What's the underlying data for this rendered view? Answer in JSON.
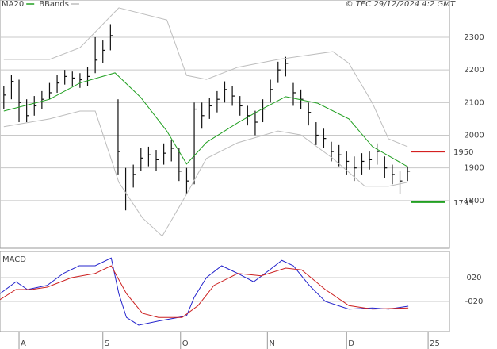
{
  "chart_data": [
    {
      "type": "ohlc",
      "annotation": "© TEC 29/12/2024 4:2 GMT",
      "xlim": [
        -0.5,
        58.5
      ],
      "ylim": [
        1654,
        2414
      ],
      "yticks": [
        1800,
        1900,
        2000,
        2100,
        2200,
        2300
      ],
      "grid": true,
      "bars": {
        "color": "#111111",
        "high": [
          2150,
          2185,
          2170,
          2110,
          2120,
          2135,
          2160,
          2185,
          2200,
          2195,
          2190,
          2210,
          2300,
          2290,
          2340,
          2110,
          1900,
          1910,
          1960,
          1965,
          1955,
          1975,
          1985,
          1960,
          1900,
          2100,
          2100,
          2115,
          2135,
          2165,
          2150,
          2120,
          2090,
          2075,
          2110,
          2170,
          2225,
          2240,
          2160,
          2140,
          2100,
          2040,
          2020,
          1980,
          1970,
          1950,
          1935,
          1945,
          1950,
          1975,
          1935,
          1910,
          1890,
          1905
        ],
        "low": [
          2080,
          2110,
          2040,
          2040,
          2060,
          2080,
          2110,
          2130,
          2155,
          2150,
          2145,
          2150,
          2190,
          2220,
          2260,
          1880,
          1770,
          1840,
          1890,
          1905,
          1890,
          1910,
          1920,
          1860,
          1820,
          1850,
          2020,
          2050,
          2070,
          2100,
          2090,
          2060,
          2030,
          2000,
          2040,
          2100,
          2160,
          2180,
          2090,
          2080,
          2030,
          1970,
          1960,
          1920,
          1905,
          1880,
          1860,
          1880,
          1895,
          1910,
          1870,
          1850,
          1820,
          1860
        ],
        "close": [
          2123,
          2165,
          2100,
          2060,
          2090,
          2110,
          2130,
          2160,
          2180,
          2175,
          2170,
          2180,
          2230,
          2260,
          2305,
          1950,
          1820,
          1880,
          1930,
          1940,
          1925,
          1945,
          1960,
          1890,
          1860,
          2080,
          2060,
          2090,
          2110,
          2140,
          2120,
          2090,
          2060,
          2040,
          2080,
          2140,
          2200,
          2220,
          2130,
          2110,
          2070,
          2000,
          1990,
          1950,
          1940,
          1920,
          1900,
          1920,
          1925,
          1950,
          1900,
          1880,
          1860,
          1890
        ]
      },
      "series": [
        {
          "name": "MA20",
          "color": "#22a022",
          "x": [
            0,
            6,
            10,
            14.6,
            18,
            21.4,
            24,
            26.6,
            30.7,
            33.8,
            37,
            41.2,
            45.3,
            48.4,
            53
          ],
          "values": [
            2074,
            2110,
            2160,
            2191,
            2115,
            2013,
            1912,
            1978,
            2038,
            2079,
            2118,
            2098,
            2050,
            1965,
            1904
          ]
        },
        {
          "name": "BBands",
          "color": "#bdbdbd",
          "x": [
            0,
            6,
            10,
            15.1,
            21.4,
            24,
            26.6,
            30.7,
            36,
            43.2,
            45.3,
            48.4,
            50.5,
            53
          ],
          "values": [
            2232,
            2232,
            2268,
            2390,
            2353,
            2183,
            2171,
            2208,
            2232,
            2256,
            2220,
            2098,
            1989,
            1965
          ]
        },
        {
          "color": "#bdbdbd",
          "x": [
            0,
            6,
            10,
            12,
            15.1,
            18.2,
            20.8,
            24,
            26.6,
            30.7,
            36,
            39,
            43.2,
            47.4,
            50.5,
            53
          ],
          "values": [
            2026,
            2050,
            2074,
            2074,
            1856,
            1747,
            1691,
            1820,
            1929,
            1977,
            2013,
            2001,
            1929,
            1844,
            1844,
            1856
          ]
        }
      ],
      "levels": [
        {
          "value": 1950,
          "color": "#d42020"
        },
        {
          "value": 1795,
          "color": "#22a022"
        }
      ]
    },
    {
      "type": "line",
      "title": "MACD",
      "xlim": [
        -0.5,
        58.5
      ],
      "ylim": [
        -70.7,
        64
      ],
      "yticks": [
        {
          "value": 20,
          "label": "020"
        },
        {
          "value": -20,
          "label": "-020"
        }
      ],
      "xticks": [
        {
          "value": 2,
          "label": "A"
        },
        {
          "value": 13,
          "label": "S"
        },
        {
          "value": 23.2,
          "label": "O"
        },
        {
          "value": 34.6,
          "label": "N"
        },
        {
          "value": 45,
          "label": "D"
        },
        {
          "value": 55.7,
          "label": "25"
        }
      ],
      "series": [
        {
          "color": "#2424cc",
          "x": [
            -0.5,
            1.6,
            3.1,
            5.7,
            7.8,
            9.9,
            12,
            14.1,
            15.1,
            16.1,
            17.7,
            20.3,
            22.9,
            24,
            25,
            26.6,
            28.6,
            30.7,
            32.8,
            34.9,
            36.5,
            38,
            40.1,
            42.2,
            45.3,
            48.4,
            50.5,
            53.1
          ],
          "values": [
            -7,
            13,
            0,
            7,
            27,
            40,
            40,
            53,
            -7,
            -47,
            -60,
            -53,
            -47,
            -44,
            -13,
            20,
            40,
            27,
            13,
            33,
            49,
            40,
            7,
            -20,
            -33,
            -31,
            -33,
            -28
          ]
        },
        {
          "color": "#cc2020",
          "x": [
            -0.5,
            1.6,
            3.6,
            5.7,
            8.9,
            12,
            14.1,
            16.1,
            18.2,
            20.3,
            23.4,
            25.5,
            27.6,
            30.7,
            33.8,
            37,
            39.1,
            42.2,
            45.3,
            48.4,
            53.1
          ],
          "values": [
            -17,
            0,
            0,
            4,
            20,
            27,
            40,
            -7,
            -40,
            -47,
            -47,
            -27,
            7,
            27,
            23,
            36,
            33,
            0,
            -27,
            -33,
            -31
          ]
        }
      ]
    }
  ]
}
